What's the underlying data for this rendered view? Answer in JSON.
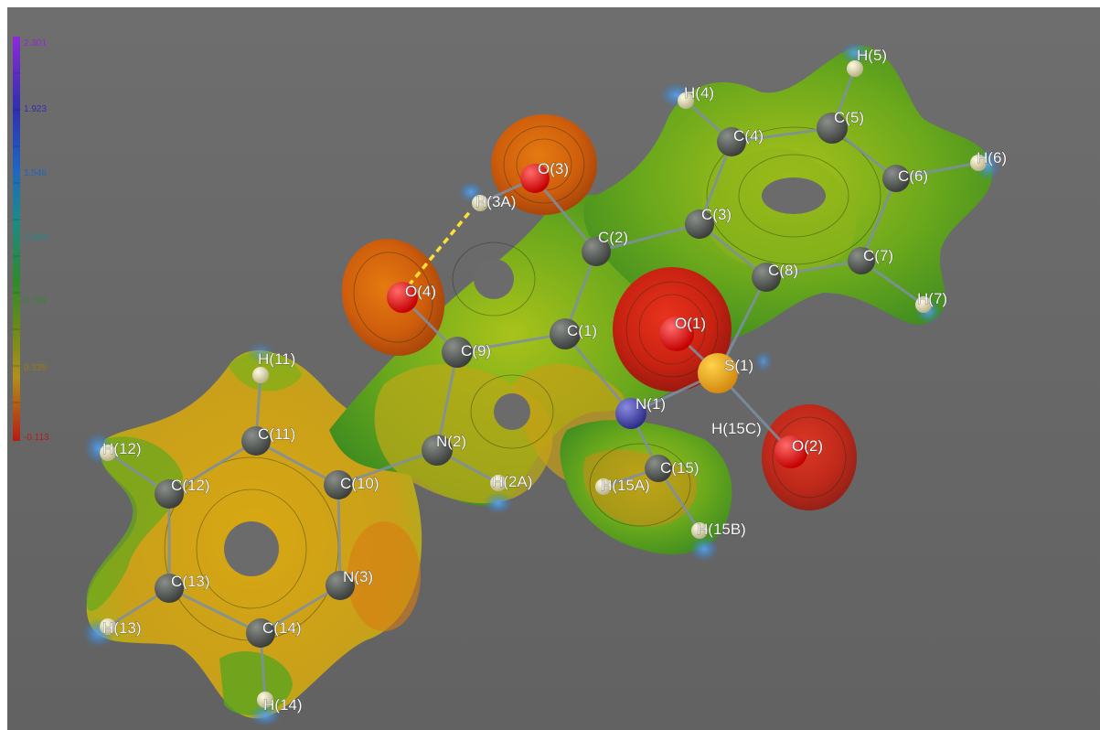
{
  "colors": {
    "background": "#6b6b6b",
    "positive_extreme": "#8a2be2",
    "negative_extreme": "#b81c12",
    "hbond": "#ffe033"
  },
  "colorbar": {
    "ticks": [
      "2.301",
      "1.923",
      "1.546",
      "1.169",
      "0.791",
      "0.335",
      "-0.113"
    ],
    "tick_colors": [
      "#8d2ad8",
      "#2f2fb0",
      "#1f66c2",
      "#1c8a8a",
      "#2f8a2f",
      "#9a7a10",
      "#b81c12"
    ]
  },
  "atom_labels": [
    "H(5)",
    "H(4)",
    "C(5)",
    "C(4)",
    "O(3)",
    "H(6)",
    "C(6)",
    "H(3A)",
    "C(3)",
    "C(2)",
    "C(7)",
    "C(8)",
    "O(4)",
    "H(7)",
    "O(1)",
    "C(1)",
    "H(11)",
    "C(9)",
    "S(1)",
    "N(1)",
    "C(11)",
    "H(15C)",
    "N(2)",
    "O(2)",
    "H(12)",
    "C(15)",
    "C(12)",
    "C(10)",
    "H(2A)",
    "H(15A)",
    "H(15B)",
    "N(3)",
    "C(13)",
    "H(13)",
    "C(14)",
    "H(14)"
  ]
}
